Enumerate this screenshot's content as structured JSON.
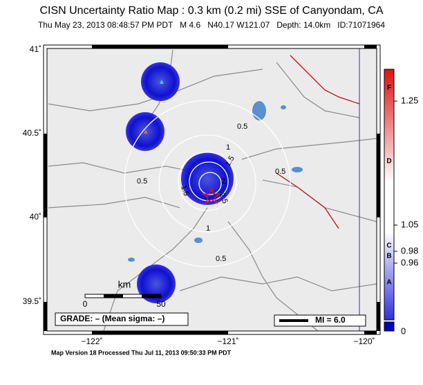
{
  "header": {
    "title": "CISN Uncertainty Ratio Map : 0.3 km (0.2 mi) SSE of Canyondam, CA",
    "subtitle": "Thu May 23, 2013 08:48:57 PM PDT   M 4.6   N40.17 W121.07   Depth: 14.0km   ID:71071964"
  },
  "map": {
    "lat_labels": [
      "41˚",
      "40.5˚",
      "40˚",
      "39.5˚"
    ],
    "lon_labels": [
      "−122˚",
      "−121˚",
      "−120˚"
    ],
    "contour_labels": [
      "0.5",
      "1",
      "1.5",
      "2",
      "2.5",
      "1.5",
      "0.5",
      "0.5",
      "1",
      "0.5"
    ],
    "scale": {
      "unit": "km",
      "start": "0",
      "end": "50"
    },
    "grade": "GRADE: – (Mean sigma: –)",
    "intensity": "MI = 6.0"
  },
  "colorbar": {
    "letters": [
      "F",
      "D",
      "C",
      "B",
      "A"
    ],
    "values": [
      "1.25",
      "1.05",
      "0.98",
      "0.96",
      "0"
    ]
  },
  "footer": "Map Version 18 Processed Thu Jul 11, 2013 09:50:33 PM PDT"
}
